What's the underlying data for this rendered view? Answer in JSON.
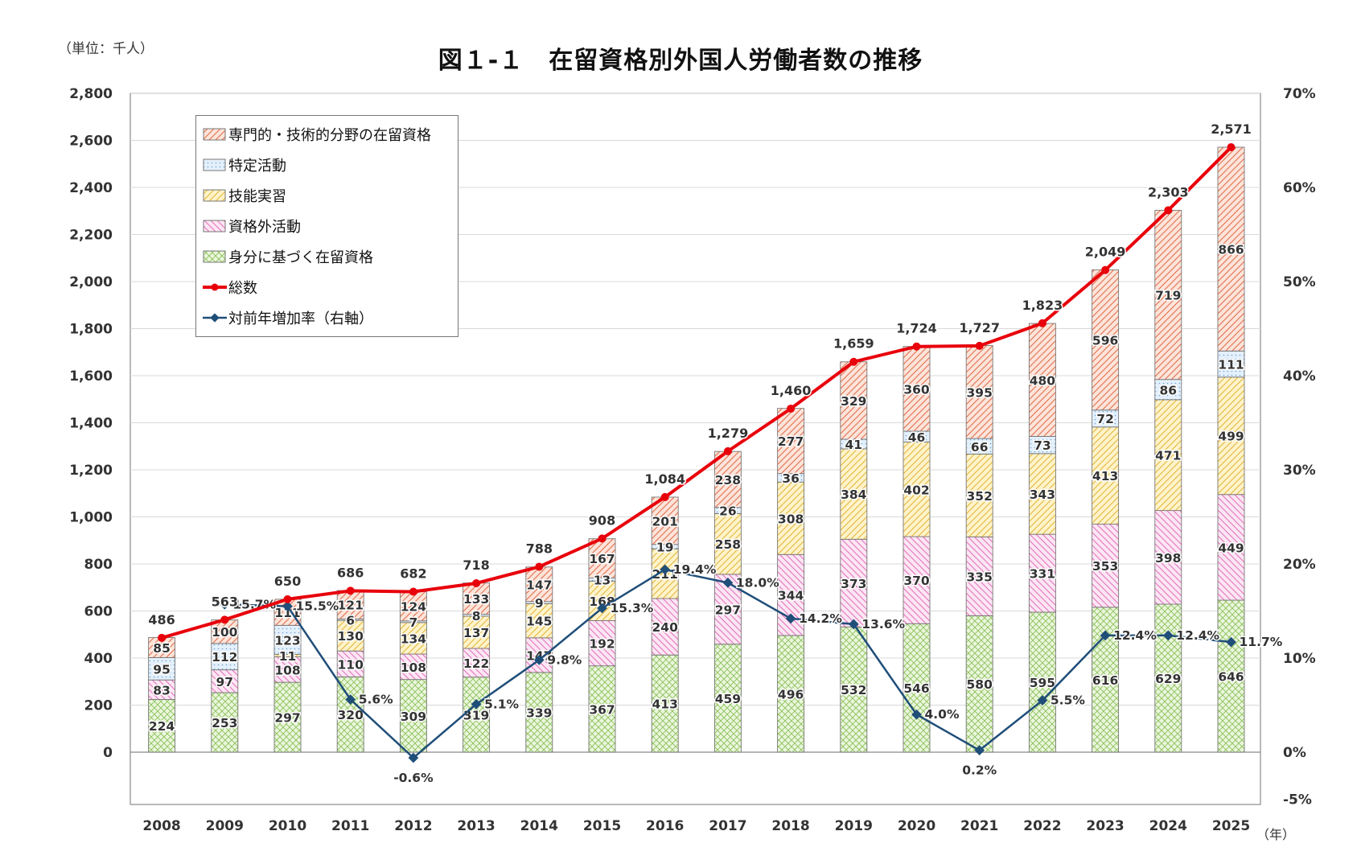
{
  "unit_label": "（単位：千人）",
  "title": "図１-１　在留資格別外国人労働者数の推移",
  "year_unit": "（年）",
  "legend": [
    {
      "key": "professional",
      "label": "専門的・技術的分野の在留資格"
    },
    {
      "key": "designated",
      "label": "特定活動"
    },
    {
      "key": "trainee",
      "label": "技能実習"
    },
    {
      "key": "other_activity",
      "label": "資格外活動"
    },
    {
      "key": "status",
      "label": "身分に基づく在留資格"
    },
    {
      "key": "total",
      "label": "総数"
    },
    {
      "key": "growth",
      "label": "対前年増加率（右軸）"
    }
  ],
  "chart_data": {
    "type": "bar",
    "stacked": true,
    "categories": [
      "2008",
      "2009",
      "2010",
      "2011",
      "2012",
      "2013",
      "2014",
      "2015",
      "2016",
      "2017",
      "2018",
      "2019",
      "2020",
      "2021",
      "2022",
      "2023",
      "2024",
      "2025"
    ],
    "series": [
      {
        "key": "status",
        "name": "身分に基づく在留資格",
        "color": "#7fbf3f",
        "values": [
          224,
          253,
          297,
          320,
          309,
          319,
          339,
          367,
          413,
          459,
          496,
          532,
          546,
          580,
          595,
          616,
          629,
          646
        ]
      },
      {
        "key": "other_activity",
        "name": "資格外活動",
        "color": "#e060b0",
        "values": [
          83,
          97,
          108,
          110,
          108,
          122,
          147,
          192,
          240,
          297,
          344,
          373,
          370,
          335,
          331,
          353,
          398,
          449
        ]
      },
      {
        "key": "trainee",
        "name": "技能実習",
        "color": "#e8b400",
        "values": [
          0,
          0,
          11,
          130,
          134,
          137,
          145,
          168,
          211,
          258,
          308,
          384,
          402,
          352,
          343,
          413,
          471,
          499
        ]
      },
      {
        "key": "designated",
        "name": "特定活動",
        "color": "#5b9bd5",
        "values": [
          95,
          112,
          123,
          6,
          7,
          8,
          9,
          13,
          19,
          26,
          36,
          41,
          46,
          66,
          73,
          72,
          86,
          111
        ]
      },
      {
        "key": "professional",
        "name": "専門的・技術的分野の在留資格",
        "color": "#e06040",
        "values": [
          85,
          100,
          111,
          121,
          124,
          133,
          147,
          167,
          201,
          238,
          277,
          329,
          360,
          395,
          480,
          596,
          719,
          866
        ]
      }
    ],
    "totals": {
      "name": "総数",
      "color": "#e8000b",
      "values": [
        486,
        563,
        650,
        686,
        682,
        718,
        788,
        908,
        1084,
        1279,
        1460,
        1659,
        1724,
        1727,
        1823,
        2049,
        2303,
        2571
      ],
      "labels": [
        "486",
        "563",
        "650",
        "686",
        "682",
        "718",
        "788",
        "908",
        "1,084",
        "1,279",
        "1,460",
        "1,659",
        "1,724",
        "1,727",
        "1,823",
        "2,049",
        "2,303",
        "2,571"
      ]
    },
    "growth": {
      "name": "対前年増加率（右軸）",
      "color": "#1f4e79",
      "values": [
        null,
        15.7,
        15.5,
        5.6,
        -0.6,
        5.1,
        9.8,
        15.3,
        19.4,
        18.0,
        14.2,
        13.6,
        4.0,
        0.2,
        5.5,
        12.4,
        12.4,
        11.7
      ],
      "labels": [
        "",
        "15.7%",
        "15.5%",
        "5.6%",
        "-0.6%",
        "5.1%",
        "9.8%",
        "15.3%",
        "19.4%",
        "18.0%",
        "14.2%",
        "13.6%",
        "4.0%",
        "0.2%",
        "5.5%",
        "12.4%",
        "12.4%",
        "11.7%"
      ]
    },
    "y_left": {
      "min": 0,
      "max": 2800,
      "display_min": -200,
      "ticks": [
        0,
        200,
        400,
        600,
        800,
        1000,
        1200,
        1400,
        1600,
        1800,
        2000,
        2200,
        2400,
        2600,
        2800
      ],
      "tick_labels": [
        "0",
        "200",
        "400",
        "600",
        "800",
        "1,000",
        "1,200",
        "1,400",
        "1,600",
        "1,800",
        "2,000",
        "2,200",
        "2,400",
        "2,600",
        "2,800"
      ]
    },
    "y_right": {
      "min": -5,
      "max": 70,
      "ticks": [
        -5,
        0,
        10,
        20,
        30,
        40,
        50,
        60,
        70
      ],
      "tick_labels": [
        "-5%",
        "0%",
        "10%",
        "20%",
        "30%",
        "40%",
        "50%",
        "60%",
        "70%"
      ]
    },
    "grid": true,
    "legend_position": "top-left"
  }
}
